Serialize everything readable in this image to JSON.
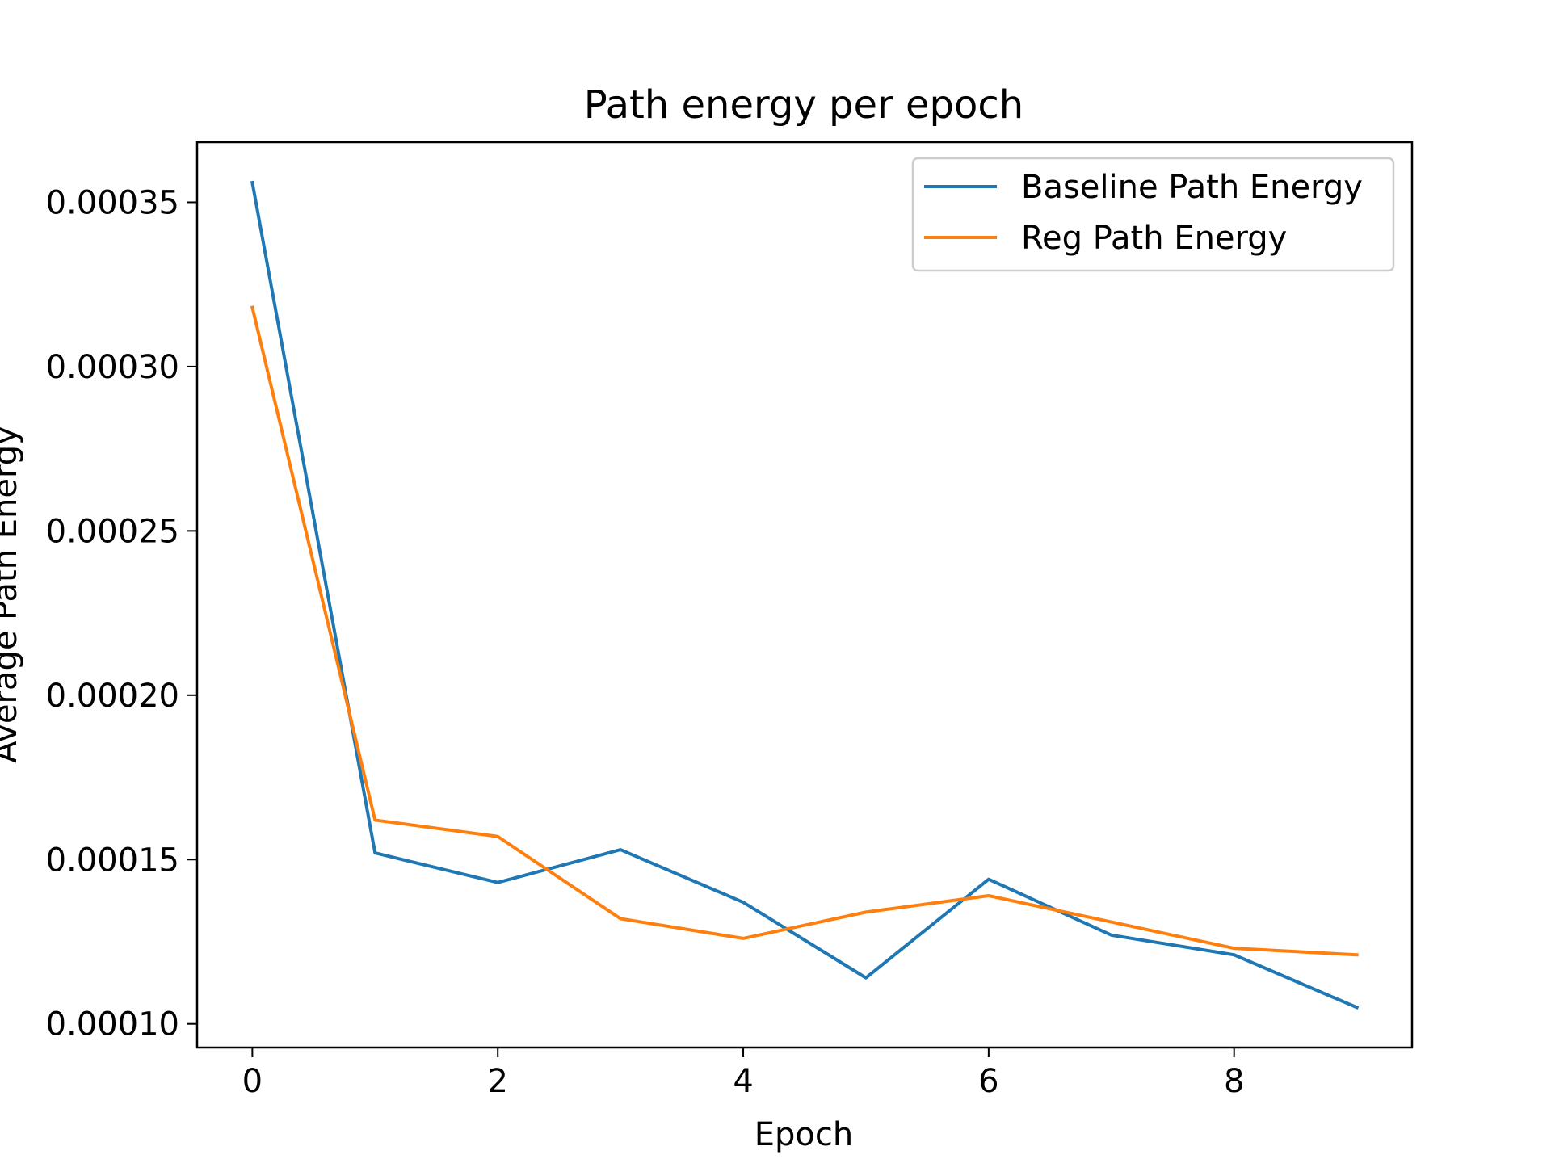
{
  "chart_data": {
    "type": "line",
    "title": "Path energy per epoch",
    "xlabel": "Epoch",
    "ylabel": "Average Path Energy",
    "x": [
      0,
      1,
      2,
      3,
      4,
      5,
      6,
      7,
      8,
      9
    ],
    "series": [
      {
        "name": "Baseline Path Energy",
        "color": "#1f77b4",
        "values": [
          0.000356,
          0.000152,
          0.000143,
          0.000153,
          0.000137,
          0.000114,
          0.000144,
          0.000127,
          0.000121,
          0.000105
        ]
      },
      {
        "name": "Reg Path Energy",
        "color": "#ff7f0e",
        "values": [
          0.000318,
          0.000162,
          0.000157,
          0.000132,
          0.000126,
          0.000134,
          0.000139,
          0.000131,
          0.000123,
          0.000121
        ]
      }
    ],
    "xlim": [
      -0.45,
      9.45
    ],
    "ylim": [
      9.28e-05,
      0.0003683
    ],
    "xticks": [
      0,
      2,
      4,
      6,
      8
    ],
    "xtick_labels": [
      "0",
      "2",
      "4",
      "6",
      "8"
    ],
    "yticks": [
      0.0001,
      0.00015,
      0.0002,
      0.00025,
      0.0003,
      0.00035
    ],
    "ytick_labels": [
      "0.00010",
      "0.00015",
      "0.00020",
      "0.00025",
      "0.00030",
      "0.00035"
    ],
    "grid": false,
    "legend_position": "top-right"
  }
}
